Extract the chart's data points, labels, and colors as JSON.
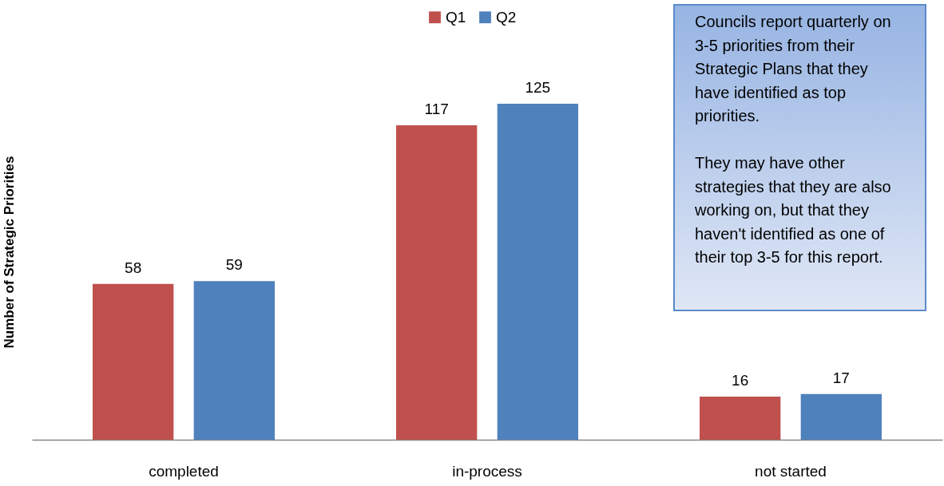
{
  "chart_data": {
    "type": "bar",
    "ylabel": "Number of Strategic Priorities",
    "categories": [
      "completed",
      "in-process",
      "not started"
    ],
    "series": [
      {
        "name": "Q1",
        "color": "#c0504d",
        "values": [
          58,
          117,
          16
        ]
      },
      {
        "name": "Q2",
        "color": "#4f81bd",
        "values": [
          59,
          125,
          17
        ]
      }
    ],
    "data_labels": true,
    "legend": "top",
    "annotations": [
      "Councils report quarterly on 3-5 priorities from their Strategic Plans that they have identified as top priorities.",
      "They may have other strategies that they are also working on, but that they haven't identified as one of their top 3-5 for this report."
    ]
  }
}
